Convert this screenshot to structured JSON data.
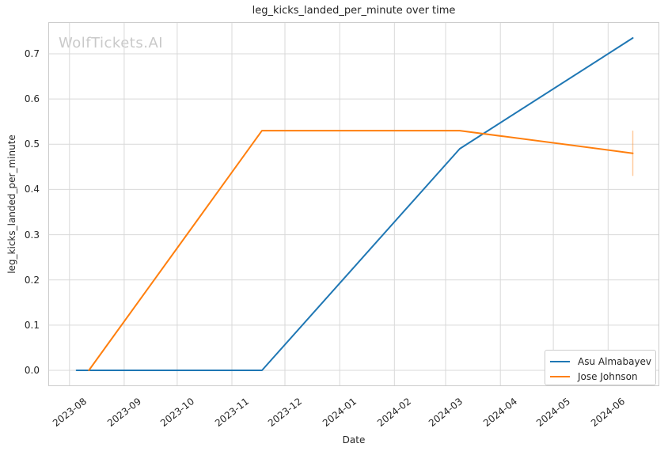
{
  "chart_data": {
    "type": "line",
    "title": "leg_kicks_landed_per_minute over time",
    "xlabel": "Date",
    "ylabel": "leg_kicks_landed_per_minute",
    "watermark": "WolfTickets.AI",
    "grid": true,
    "legend_position": "lower right",
    "x_ticks": [
      "2023-08",
      "2023-09",
      "2023-10",
      "2023-11",
      "2023-12",
      "2024-01",
      "2024-02",
      "2024-03",
      "2024-04",
      "2024-05",
      "2024-06"
    ],
    "y_ticks": [
      0.0,
      0.1,
      0.2,
      0.3,
      0.4,
      0.5,
      0.6,
      0.7
    ],
    "x_range": [
      "2023-07-20",
      "2024-06-30"
    ],
    "ylim": [
      -0.035,
      0.77
    ],
    "colors": {
      "asu_almabayev": "#1f77b4",
      "jose_johnson": "#ff7f0e",
      "error_bar": "rgba(255,127,14,0.4)",
      "grid": "#d9d9d9",
      "axis_border": "#cccccc",
      "watermark": "#c9c9c9",
      "text": "#262626"
    },
    "series": [
      {
        "name": "Asu Almabayev",
        "color": "#1f77b4",
        "points": [
          [
            "2023-08-05",
            0.0
          ],
          [
            "2023-11-18",
            0.0
          ],
          [
            "2024-03-09",
            0.49
          ],
          [
            "2024-06-15",
            0.735
          ]
        ]
      },
      {
        "name": "Jose Johnson",
        "color": "#ff7f0e",
        "points": [
          [
            "2023-08-12",
            0.0
          ],
          [
            "2023-11-18",
            0.53
          ],
          [
            "2024-03-09",
            0.53
          ],
          [
            "2024-06-15",
            0.48
          ]
        ],
        "error_bar": {
          "date": "2024-06-15",
          "low": 0.43,
          "high": 0.53
        }
      }
    ]
  }
}
